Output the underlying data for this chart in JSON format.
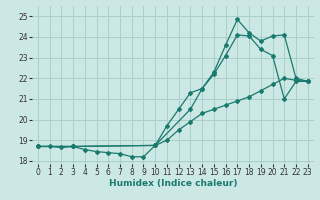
{
  "xlabel": "Humidex (Indice chaleur)",
  "bg_color": "#cce8e4",
  "grid_color": "#aacfcb",
  "line_color": "#1a7a6e",
  "xlim": [
    -0.5,
    23.5
  ],
  "ylim": [
    17.85,
    25.5
  ],
  "yticks": [
    18,
    19,
    20,
    21,
    22,
    23,
    24,
    25
  ],
  "xticks": [
    0,
    1,
    2,
    3,
    4,
    5,
    6,
    7,
    8,
    9,
    10,
    11,
    12,
    13,
    14,
    15,
    16,
    17,
    18,
    19,
    20,
    21,
    22,
    23
  ],
  "line1_x": [
    0,
    1,
    2,
    3,
    4,
    5,
    6,
    7,
    8,
    9,
    10,
    11,
    12,
    13,
    14,
    15,
    16,
    17,
    18,
    19,
    20,
    21,
    22,
    23
  ],
  "line1_y": [
    18.7,
    18.7,
    18.65,
    18.7,
    18.55,
    18.45,
    18.4,
    18.35,
    18.2,
    18.2,
    18.75,
    19.0,
    19.5,
    19.9,
    20.3,
    20.5,
    20.7,
    20.9,
    21.1,
    21.4,
    21.7,
    22.0,
    21.9,
    21.85
  ],
  "line2_x": [
    0,
    3,
    10,
    11,
    12,
    13,
    14,
    15,
    16,
    17,
    18,
    19,
    20,
    21,
    22,
    23
  ],
  "line2_y": [
    18.7,
    18.7,
    18.75,
    19.7,
    20.5,
    21.3,
    21.5,
    22.2,
    23.1,
    24.1,
    24.05,
    23.4,
    23.1,
    21.0,
    21.85,
    21.85
  ],
  "line3_x": [
    0,
    3,
    10,
    13,
    14,
    15,
    16,
    17,
    18,
    19,
    20,
    21,
    22,
    23
  ],
  "line3_y": [
    18.7,
    18.7,
    18.75,
    20.5,
    21.5,
    22.3,
    23.6,
    24.85,
    24.2,
    23.8,
    24.05,
    24.1,
    22.0,
    21.85
  ]
}
